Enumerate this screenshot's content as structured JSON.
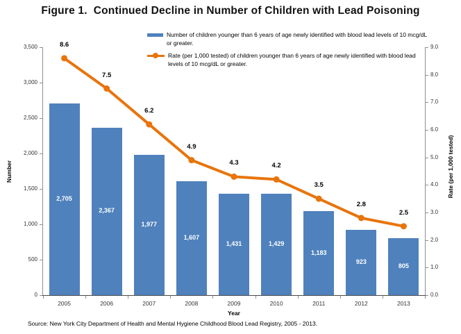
{
  "figure": {
    "title": "Figure 1.  Continued Decline in Number of Children with Lead Poisoning",
    "source": "Source: New York City Department of Health and Mental Hygiene Childhood Blood Lead Registry, 2005 - 2013."
  },
  "legend": {
    "items": [
      {
        "swatch": "bar-swatch",
        "color": "#4F81BD",
        "label": "Number of children younger than 6 years of age newly identified with blood lead levels of 10 mcg/dL or greater."
      },
      {
        "swatch": "line-marker-swatch",
        "color": "#E8740C",
        "label": "Rate (per 1,000 tested) of children younger than 6 years of age newly identified with blood lead levels of 10 mcg/dL or greater."
      }
    ]
  },
  "chart_data": {
    "type": "combo",
    "categories": [
      "2005",
      "2006",
      "2007",
      "2008",
      "2009",
      "2010",
      "2011",
      "2012",
      "2013"
    ],
    "series": [
      {
        "name": "Number of children younger than 6 years of age newly identified with blood lead levels of 10 mcg/dL or greater.",
        "type": "bar",
        "axis": "left",
        "color": "#4F81BD",
        "values": [
          2705,
          2367,
          1977,
          1607,
          1431,
          1429,
          1183,
          923,
          805
        ],
        "data_labels": [
          "2,705",
          "2,367",
          "1,977",
          "1,607",
          "1,431",
          "1,429",
          "1,183",
          "923",
          "805"
        ]
      },
      {
        "name": "Rate (per 1,000 tested) of children younger than 6 years of age newly identified with blood lead levels of 10 mcg/dL or greater.",
        "type": "line",
        "axis": "right",
        "color": "#E8740C",
        "values": [
          8.6,
          7.5,
          6.2,
          4.9,
          4.3,
          4.2,
          3.5,
          2.8,
          2.5
        ],
        "data_labels": [
          "8.6",
          "7.5",
          "6.2",
          "4.9",
          "4.3",
          "4.2",
          "3.5",
          "2.8",
          "2.5"
        ]
      }
    ],
    "title": "Figure 1.  Continued Decline in Number of Children with Lead Poisoning",
    "xlabel": "Year",
    "left_axis": {
      "title": "Number",
      "min": 0,
      "max": 3500,
      "step": 500,
      "tick_labels": [
        "0",
        "500",
        "1,000",
        "1,500",
        "2,000",
        "2,500",
        "3,000",
        "3,500"
      ]
    },
    "right_axis": {
      "title": "Rate (per 1,000 tested)",
      "min": 0,
      "max": 9,
      "step": 1,
      "tick_labels": [
        "0.0",
        "1.0",
        "2.0",
        "3.0",
        "4.0",
        "5.0",
        "6.0",
        "7.0",
        "8.0",
        "9.0"
      ]
    },
    "grid": false,
    "legend_position": "top"
  }
}
